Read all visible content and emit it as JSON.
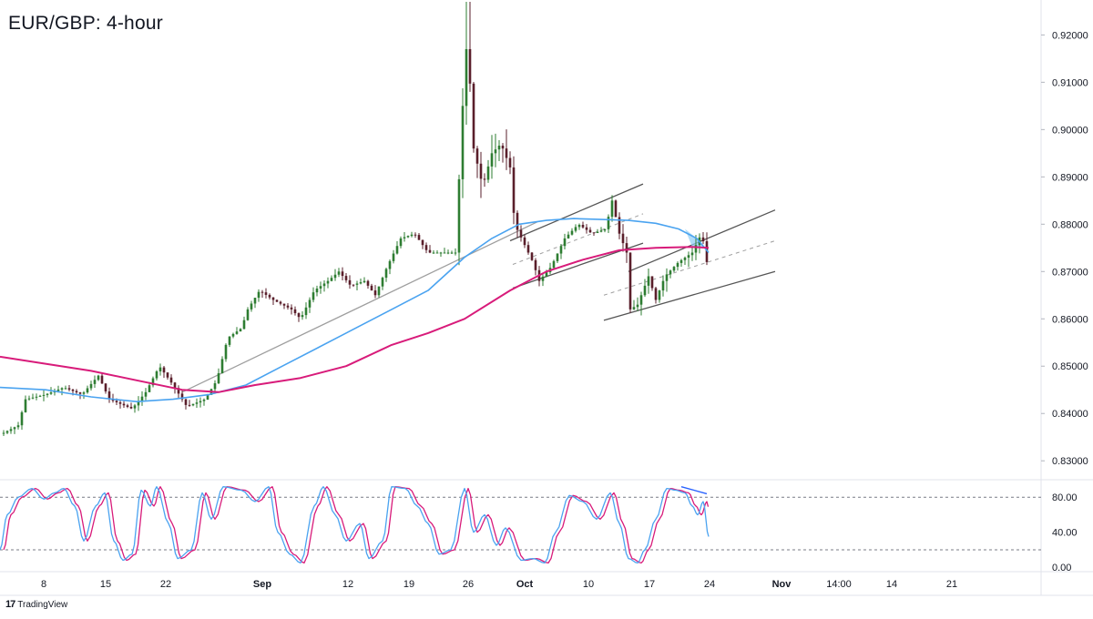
{
  "chart_data": {
    "type": "candlestick",
    "title": "EUR/GBP: 4-hour",
    "brand": "TradingView",
    "brand_logo": "17",
    "price_axis": {
      "ylim": [
        0.826,
        0.927
      ],
      "ticks": [
        0.83,
        0.84,
        0.85,
        0.86,
        0.87,
        0.88,
        0.89,
        0.9,
        0.91,
        0.92
      ],
      "tick_labels": [
        "0.83000",
        "0.84000",
        "0.85000",
        "0.86000",
        "0.87000",
        "0.88000",
        "0.89000",
        "0.90000",
        "0.91000",
        "0.92000"
      ]
    },
    "time_axis": {
      "labels": [
        "8",
        "15",
        "22",
        "Sep",
        "12",
        "19",
        "26",
        "Oct",
        "10",
        "17",
        "24",
        "Nov",
        "14:00",
        "14",
        "21"
      ],
      "bold": [
        "Sep",
        "Oct",
        "Nov"
      ]
    },
    "price_path": [
      [
        0,
        0.8355
      ],
      [
        20,
        0.8375
      ],
      [
        28,
        0.843
      ],
      [
        50,
        0.844
      ],
      [
        70,
        0.8455
      ],
      [
        90,
        0.844
      ],
      [
        108,
        0.848
      ],
      [
        120,
        0.843
      ],
      [
        145,
        0.841
      ],
      [
        160,
        0.8445
      ],
      [
        175,
        0.85
      ],
      [
        190,
        0.846
      ],
      [
        205,
        0.8415
      ],
      [
        225,
        0.843
      ],
      [
        238,
        0.847
      ],
      [
        250,
        0.856
      ],
      [
        265,
        0.858
      ],
      [
        272,
        0.862
      ],
      [
        285,
        0.866
      ],
      [
        300,
        0.864
      ],
      [
        320,
        0.862
      ],
      [
        330,
        0.86
      ],
      [
        345,
        0.866
      ],
      [
        360,
        0.868
      ],
      [
        372,
        0.87
      ],
      [
        385,
        0.867
      ],
      [
        400,
        0.868
      ],
      [
        412,
        0.865
      ],
      [
        425,
        0.871
      ],
      [
        440,
        0.877
      ],
      [
        455,
        0.878
      ],
      [
        470,
        0.874
      ],
      [
        485,
        0.874
      ],
      [
        500,
        0.874
      ],
      [
        508,
        0.905
      ],
      [
        513,
        0.92
      ],
      [
        520,
        0.896
      ],
      [
        530,
        0.888
      ],
      [
        540,
        0.895
      ],
      [
        550,
        0.897
      ],
      [
        560,
        0.892
      ],
      [
        565,
        0.88
      ],
      [
        575,
        0.876
      ],
      [
        585,
        0.872
      ],
      [
        592,
        0.868
      ],
      [
        605,
        0.871
      ],
      [
        620,
        0.877
      ],
      [
        635,
        0.88
      ],
      [
        650,
        0.878
      ],
      [
        665,
        0.879
      ],
      [
        672,
        0.885
      ],
      [
        680,
        0.878
      ],
      [
        688,
        0.874
      ],
      [
        692,
        0.862
      ],
      [
        700,
        0.863
      ],
      [
        712,
        0.869
      ],
      [
        720,
        0.864
      ],
      [
        730,
        0.869
      ],
      [
        745,
        0.872
      ],
      [
        760,
        0.874
      ],
      [
        770,
        0.878
      ],
      [
        775,
        0.874
      ],
      [
        778,
        0.868
      ]
    ],
    "spike_high": 0.927,
    "sma_blue": [
      [
        0,
        0.8455
      ],
      [
        50,
        0.845
      ],
      [
        100,
        0.8435
      ],
      [
        150,
        0.8425
      ],
      [
        190,
        0.843
      ],
      [
        230,
        0.844
      ],
      [
        270,
        0.846
      ],
      [
        310,
        0.85
      ],
      [
        350,
        0.854
      ],
      [
        390,
        0.858
      ],
      [
        430,
        0.862
      ],
      [
        470,
        0.866
      ],
      [
        510,
        0.873
      ],
      [
        540,
        0.877
      ],
      [
        570,
        0.88
      ],
      [
        600,
        0.8808
      ],
      [
        630,
        0.8812
      ],
      [
        660,
        0.881
      ],
      [
        690,
        0.8808
      ],
      [
        720,
        0.8802
      ],
      [
        745,
        0.879
      ],
      [
        765,
        0.877
      ],
      [
        778,
        0.874
      ]
    ],
    "sma_magenta": [
      [
        0,
        0.852
      ],
      [
        50,
        0.8505
      ],
      [
        100,
        0.849
      ],
      [
        150,
        0.847
      ],
      [
        200,
        0.845
      ],
      [
        240,
        0.8445
      ],
      [
        280,
        0.846
      ],
      [
        330,
        0.8475
      ],
      [
        380,
        0.85
      ],
      [
        430,
        0.8545
      ],
      [
        470,
        0.857
      ],
      [
        510,
        0.86
      ],
      [
        560,
        0.866
      ],
      [
        600,
        0.87
      ],
      [
        640,
        0.8725
      ],
      [
        680,
        0.8745
      ],
      [
        720,
        0.875
      ],
      [
        760,
        0.8752
      ],
      [
        778,
        0.875
      ]
    ],
    "trendlines": [
      {
        "name": "long-support",
        "color": "#9e9e9e",
        "points": [
          [
            200,
            0.8445
          ],
          [
            590,
            0.8805
          ]
        ]
      },
      {
        "name": "channel1-upper",
        "color": "#555555",
        "points": [
          [
            560,
            0.8765
          ],
          [
            706,
            0.8885
          ]
        ]
      },
      {
        "name": "channel1-lower",
        "color": "#555555",
        "points": [
          [
            563,
            0.8665
          ],
          [
            706,
            0.876
          ]
        ]
      },
      {
        "name": "channel2-upper",
        "color": "#555555",
        "points": [
          [
            690,
            0.87
          ],
          [
            851,
            0.883
          ]
        ]
      },
      {
        "name": "channel2-lower",
        "color": "#555555",
        "points": [
          [
            663,
            0.8597
          ],
          [
            851,
            0.87
          ]
        ]
      }
    ],
    "dashed_midlines": [
      {
        "name": "channel1-mid",
        "points": [
          [
            563,
            0.8715
          ],
          [
            706,
            0.8822
          ]
        ]
      },
      {
        "name": "channel2-mid",
        "points": [
          [
            663,
            0.865
          ],
          [
            851,
            0.8765
          ]
        ]
      }
    ],
    "stochastic": {
      "ylim": [
        -5,
        100
      ],
      "levels": [
        80,
        20
      ],
      "tick_labels": [
        "80.00",
        "40.00",
        "0.00"
      ],
      "tick_values": [
        80,
        40,
        0
      ],
      "k": [
        [
          0,
          20
        ],
        [
          8,
          60
        ],
        [
          20,
          80
        ],
        [
          35,
          90
        ],
        [
          48,
          78
        ],
        [
          60,
          85
        ],
        [
          70,
          90
        ],
        [
          82,
          70
        ],
        [
          92,
          30
        ],
        [
          105,
          70
        ],
        [
          115,
          85
        ],
        [
          125,
          30
        ],
        [
          135,
          8
        ],
        [
          145,
          15
        ],
        [
          155,
          88
        ],
        [
          165,
          70
        ],
        [
          172,
          92
        ],
        [
          185,
          50
        ],
        [
          195,
          10
        ],
        [
          210,
          20
        ],
        [
          222,
          85
        ],
        [
          232,
          55
        ],
        [
          245,
          92
        ],
        [
          265,
          88
        ],
        [
          280,
          75
        ],
        [
          295,
          92
        ],
        [
          305,
          40
        ],
        [
          318,
          15
        ],
        [
          330,
          5
        ],
        [
          345,
          70
        ],
        [
          355,
          92
        ],
        [
          368,
          60
        ],
        [
          380,
          30
        ],
        [
          395,
          50
        ],
        [
          405,
          10
        ],
        [
          420,
          30
        ],
        [
          430,
          92
        ],
        [
          445,
          90
        ],
        [
          458,
          70
        ],
        [
          470,
          50
        ],
        [
          482,
          15
        ],
        [
          495,
          20
        ],
        [
          510,
          90
        ],
        [
          520,
          40
        ],
        [
          532,
          60
        ],
        [
          545,
          25
        ],
        [
          555,
          45
        ],
        [
          572,
          8
        ],
        [
          585,
          10
        ],
        [
          598,
          5
        ],
        [
          610,
          40
        ],
        [
          625,
          82
        ],
        [
          640,
          75
        ],
        [
          655,
          55
        ],
        [
          670,
          85
        ],
        [
          680,
          50
        ],
        [
          690,
          10
        ],
        [
          700,
          5
        ],
        [
          708,
          20
        ],
        [
          720,
          55
        ],
        [
          732,
          90
        ],
        [
          742,
          88
        ],
        [
          752,
          85
        ],
        [
          760,
          70
        ],
        [
          766,
          60
        ],
        [
          772,
          75
        ],
        [
          778,
          35
        ]
      ],
      "divergence": [
        [
          748,
          92
        ],
        [
          776,
          84
        ]
      ]
    },
    "colors": {
      "up": "#2e7d32",
      "down": "#5a1f2b",
      "sma_blue": "#4aa3f0",
      "sma_magenta": "#d81b7a",
      "stoch_k": "#4aa3f0",
      "stoch_d": "#d81b7a",
      "shade": "#8ecdf5"
    }
  }
}
